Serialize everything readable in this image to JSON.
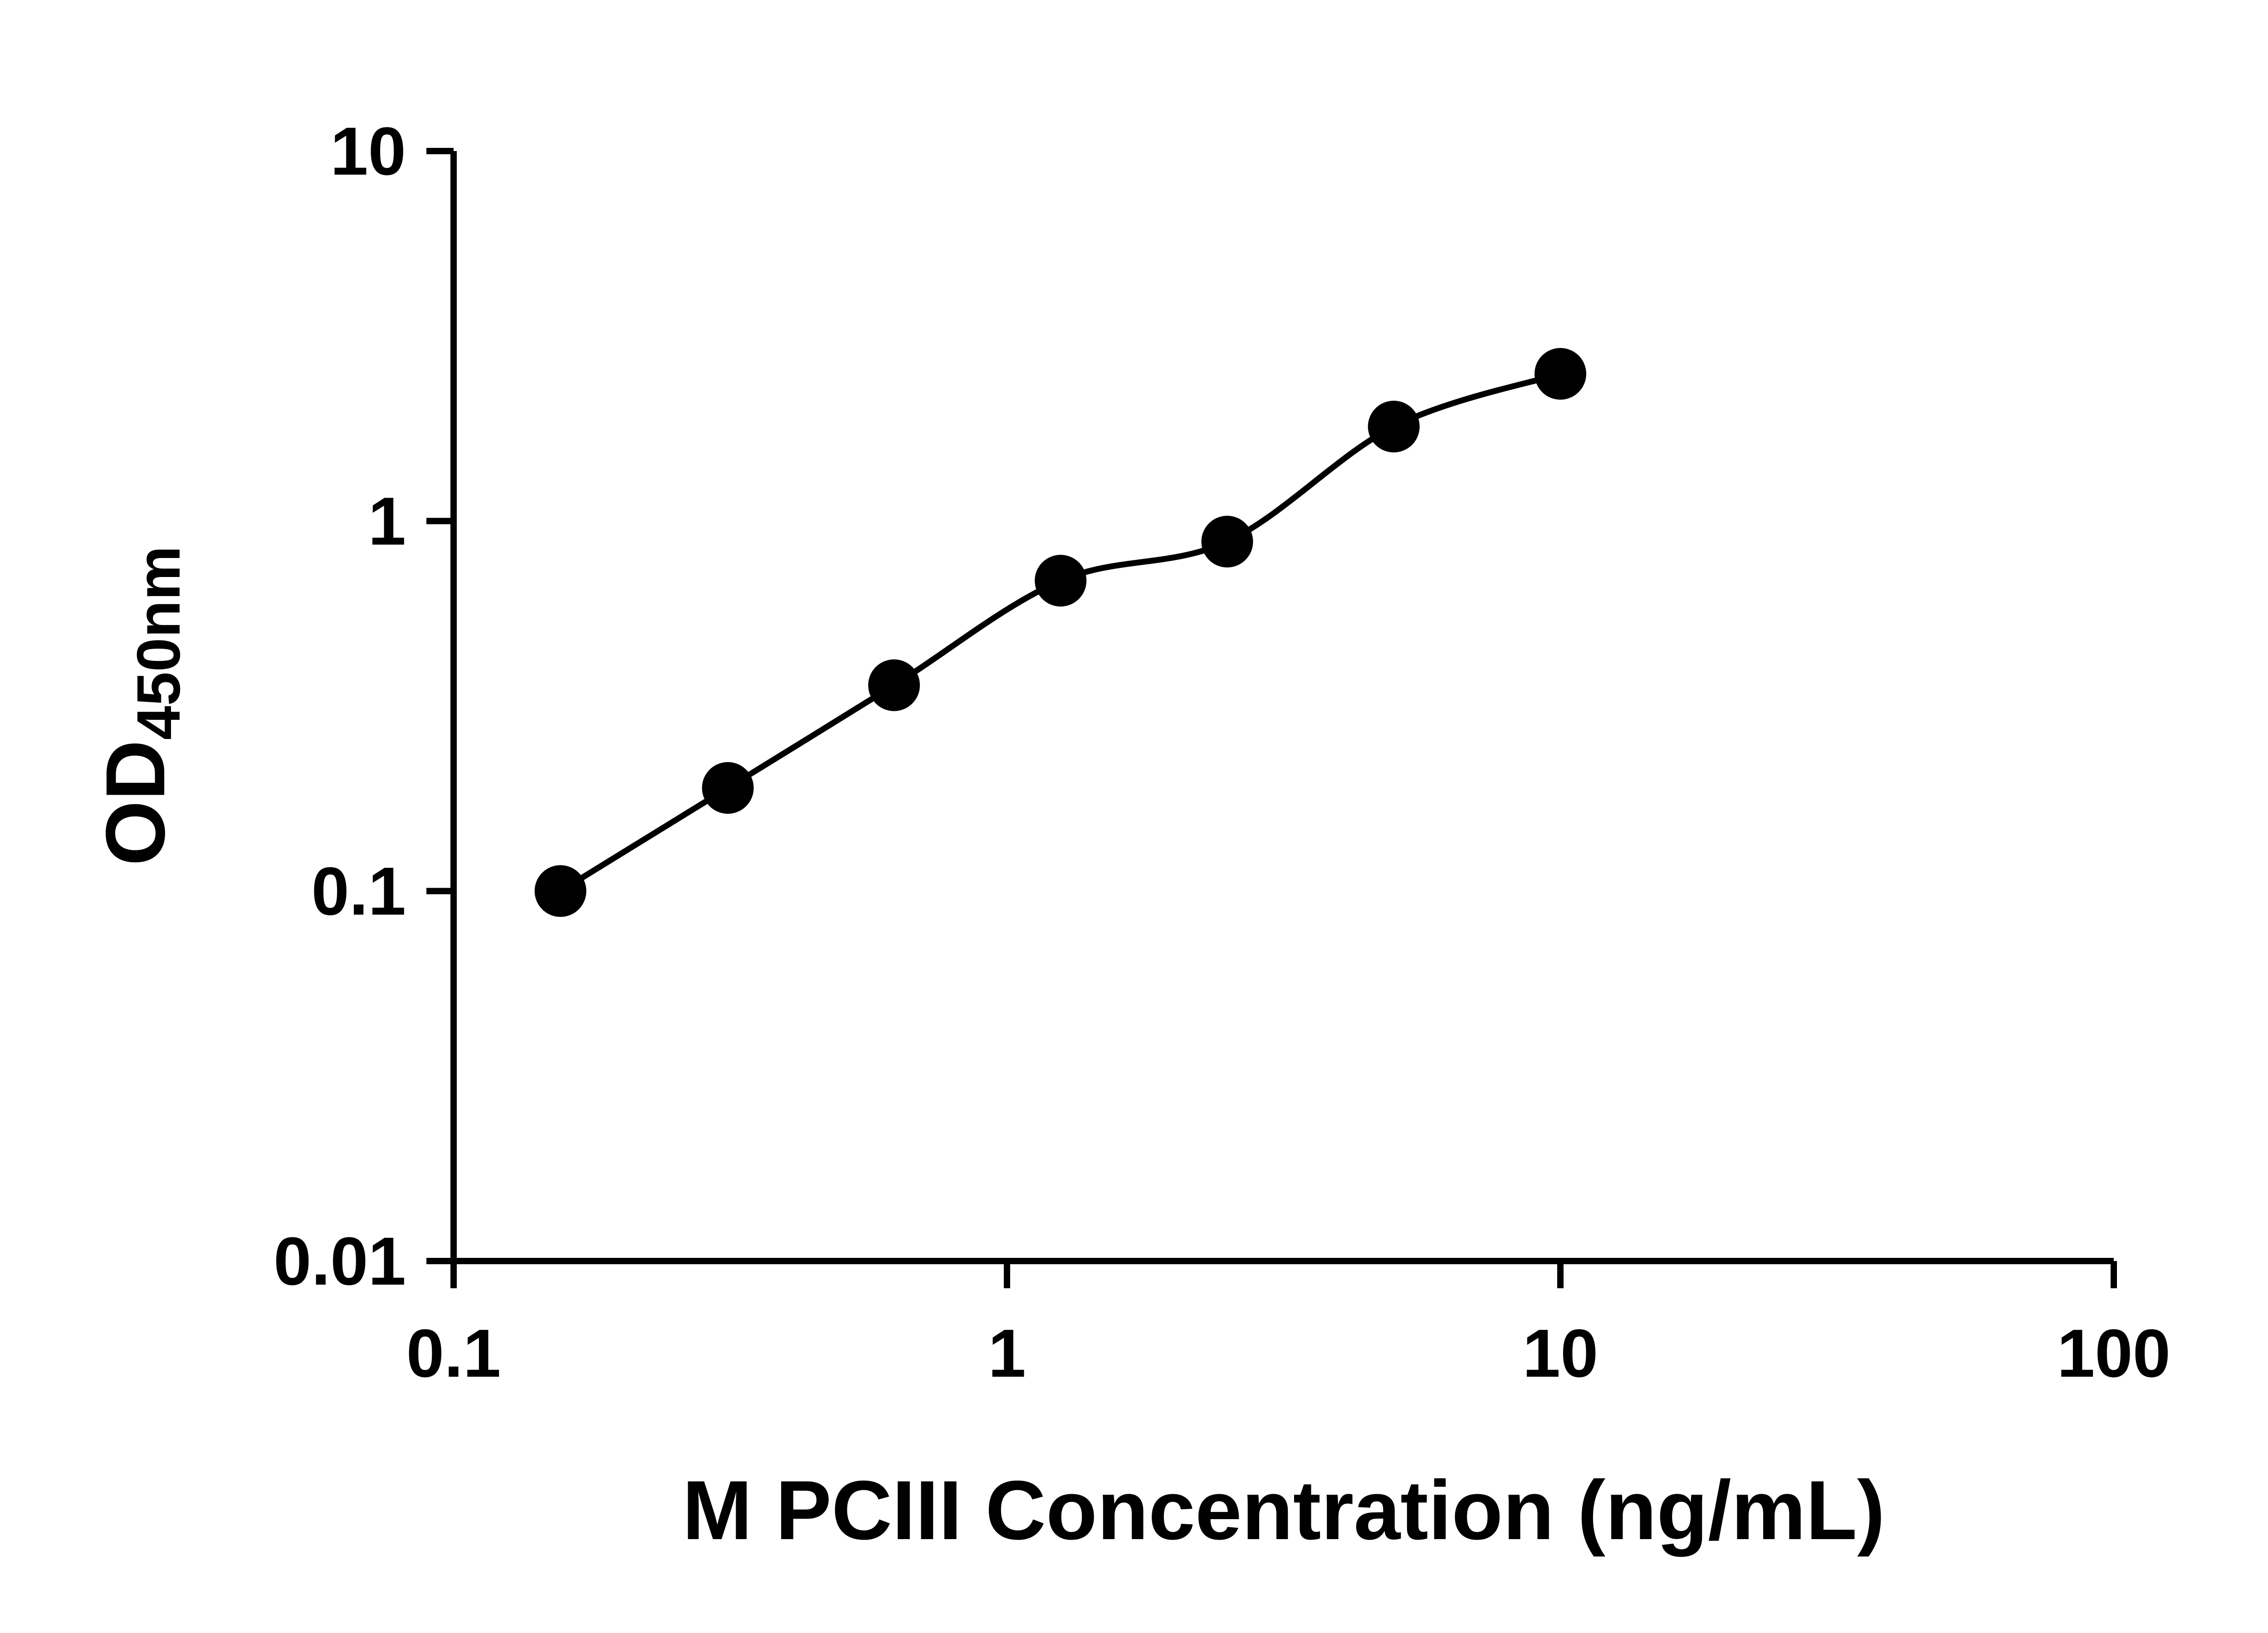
{
  "chart_data": {
    "type": "scatter",
    "title": "",
    "xlabel": "M PCIII Concentration (ng/mL)",
    "ylabel_main": "OD",
    "ylabel_sub": "450nm",
    "x_scale": "log",
    "y_scale": "log",
    "xlim": [
      0.1,
      100
    ],
    "ylim": [
      0.01,
      10
    ],
    "x_ticks": [
      0.1,
      1,
      10,
      100
    ],
    "x_tick_labels": [
      "0.1",
      "1",
      "10",
      "100"
    ],
    "y_ticks": [
      0.01,
      0.1,
      1,
      10
    ],
    "y_tick_labels": [
      "0.01",
      "0.1",
      "1",
      "10"
    ],
    "points": [
      {
        "x": 0.156,
        "y": 0.1
      },
      {
        "x": 0.313,
        "y": 0.19
      },
      {
        "x": 0.625,
        "y": 0.36
      },
      {
        "x": 1.25,
        "y": 0.69
      },
      {
        "x": 2.5,
        "y": 0.88
      },
      {
        "x": 5,
        "y": 1.8
      },
      {
        "x": 10,
        "y": 2.5
      }
    ],
    "curve": "smooth fitted curve through standard points",
    "legend": "none",
    "grid": "off",
    "marker_color": "#000000",
    "line_color": "#000000",
    "axis_color": "#000000",
    "background": "#ffffff"
  }
}
